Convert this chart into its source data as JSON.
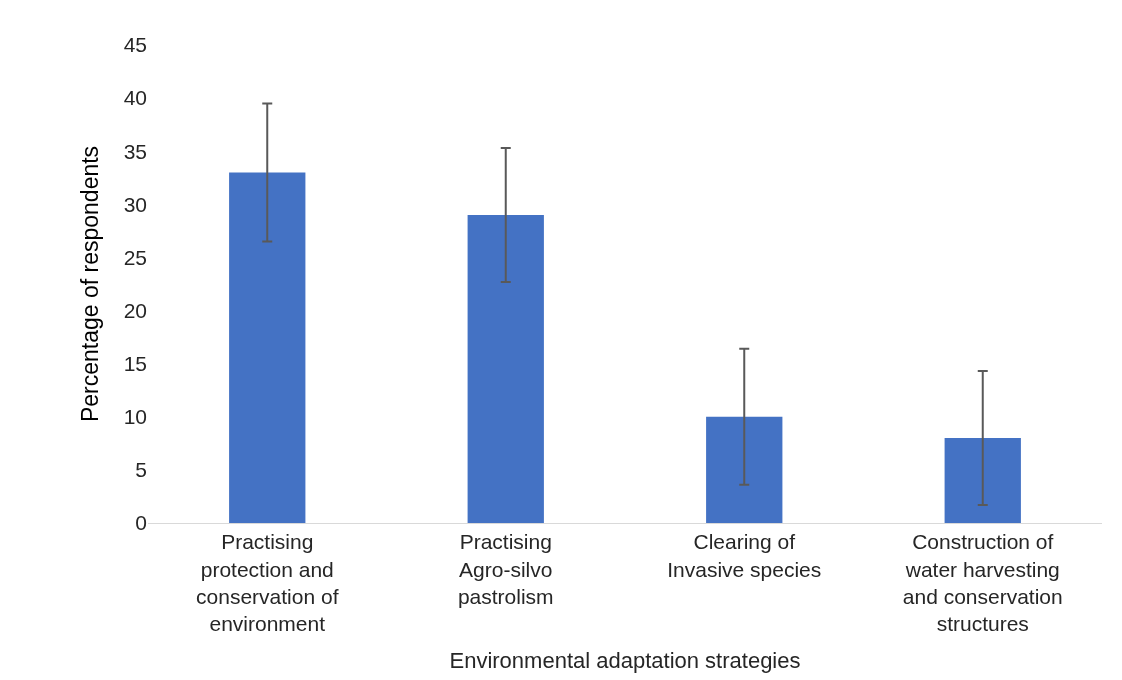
{
  "chart_data": {
    "type": "bar",
    "xlabel": "Environmental adaptation strategies",
    "ylabel": "Percentage of respondents",
    "categories": [
      "Practising protection and conservation of environment",
      "Practising Agro-silvo pastrolism",
      "Clearing of Invasive species",
      "Construction of water harvesting and conservation structures"
    ],
    "values": [
      33,
      29,
      10,
      8
    ],
    "errors": [
      6.5,
      6.3,
      6.4,
      6.3
    ],
    "color": "#4472c4",
    "ylim": [
      0,
      45
    ],
    "yticks": [
      0,
      5,
      10,
      15,
      20,
      25,
      30,
      35,
      40,
      45
    ],
    "grid": false
  }
}
